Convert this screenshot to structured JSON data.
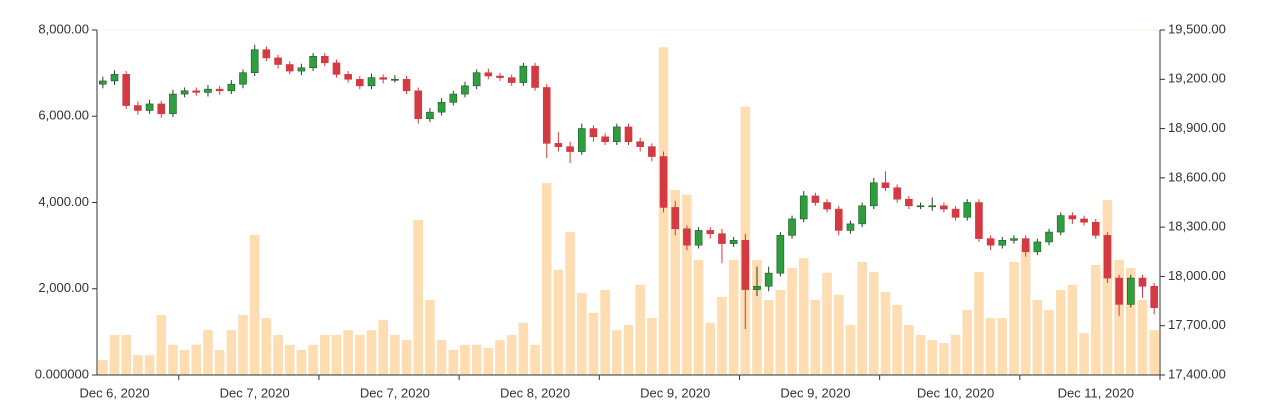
{
  "chart_data": {
    "type": "candlestick",
    "categories": [
      null,
      "Dec 6, 2020",
      null,
      null,
      null,
      null,
      null,
      null,
      null,
      null,
      null,
      null,
      null,
      "Dec 7, 2020",
      null,
      null,
      null,
      null,
      null,
      null,
      null,
      null,
      null,
      null,
      null,
      "Dec 7, 2020",
      null,
      null,
      null,
      null,
      null,
      null,
      null,
      null,
      null,
      null,
      null,
      "Dec 8, 2020",
      null,
      null,
      null,
      null,
      null,
      null,
      null,
      null,
      null,
      null,
      null,
      "Dec 9, 2020",
      null,
      null,
      null,
      null,
      null,
      null,
      null,
      null,
      null,
      null,
      null,
      "Dec 9, 2020",
      null,
      null,
      null,
      null,
      null,
      null,
      null,
      null,
      null,
      null,
      null,
      "Dec 10, 2020",
      null,
      null,
      null,
      null,
      null,
      null,
      null,
      null,
      null,
      null,
      null,
      "Dec 11, 2020",
      null,
      null,
      null,
      null,
      null
    ],
    "open": [
      19170,
      19190,
      19230,
      19040,
      19010,
      19050,
      18990,
      19110,
      19130,
      19120,
      19140,
      19130,
      19170,
      19240,
      19380,
      19330,
      19290,
      19250,
      19270,
      19340,
      19300,
      19230,
      19200,
      19160,
      19210,
      19200,
      19200,
      19130,
      18960,
      19000,
      19060,
      19110,
      19160,
      19240,
      19220,
      19210,
      19180,
      19280,
      19150,
      18810,
      18790,
      18760,
      18900,
      18850,
      18820,
      18910,
      18820,
      18790,
      18730,
      18420,
      18290,
      18190,
      18280,
      18260,
      18200,
      18220,
      17920,
      17940,
      18020,
      18250,
      18350,
      18490,
      18450,
      18410,
      18280,
      18320,
      18430,
      18570,
      18540,
      18470,
      18430,
      18430,
      18430,
      18410,
      18360,
      18450,
      18230,
      18190,
      18220,
      18230,
      18150,
      18210,
      18270,
      18370,
      18350,
      18330,
      18250,
      17990,
      17830,
      17990,
      17940
    ],
    "high": [
      19215,
      19255,
      19250,
      19065,
      19075,
      19070,
      19135,
      19150,
      19150,
      19165,
      19160,
      19195,
      19260,
      19410,
      19400,
      19350,
      19310,
      19295,
      19360,
      19360,
      19320,
      19250,
      19220,
      19235,
      19230,
      19225,
      19220,
      19150,
      19025,
      19085,
      19130,
      19185,
      19260,
      19265,
      19240,
      19230,
      19300,
      19300,
      19170,
      18880,
      18820,
      18930,
      18920,
      18870,
      18930,
      18930,
      18845,
      18810,
      18760,
      18460,
      18310,
      18300,
      18300,
      18290,
      18240,
      18260,
      18060,
      18060,
      18270,
      18370,
      18520,
      18510,
      18470,
      18430,
      18340,
      18450,
      18600,
      18640,
      18560,
      18490,
      18450,
      18480,
      18450,
      18430,
      18470,
      18470,
      18250,
      18240,
      18250,
      18250,
      18230,
      18290,
      18390,
      18390,
      18370,
      18350,
      18270,
      18010,
      18010,
      18010,
      17960
    ],
    "low": [
      19145,
      19165,
      19020,
      18985,
      18990,
      18965,
      18970,
      19090,
      19100,
      19095,
      19105,
      19110,
      19145,
      19220,
      19310,
      19265,
      19230,
      19225,
      19250,
      19280,
      19210,
      19180,
      19140,
      19140,
      19175,
      19180,
      19110,
      18930,
      18940,
      18980,
      19040,
      19090,
      19140,
      19200,
      19190,
      19160,
      19160,
      19130,
      18720,
      18760,
      18690,
      18740,
      18820,
      18800,
      18800,
      18800,
      18760,
      18700,
      18390,
      18250,
      18160,
      18170,
      18230,
      18080,
      18180,
      17680,
      17880,
      17910,
      18000,
      18230,
      18330,
      18430,
      18390,
      18250,
      18260,
      18300,
      18410,
      18520,
      18450,
      18410,
      18410,
      18400,
      18390,
      18340,
      18340,
      18210,
      18160,
      18170,
      18200,
      18120,
      18130,
      18190,
      18250,
      18320,
      18310,
      18230,
      17960,
      17760,
      17810,
      17870,
      17770
    ],
    "close": [
      19190,
      19230,
      19040,
      19010,
      19050,
      18990,
      19110,
      19130,
      19120,
      19140,
      19130,
      19170,
      19240,
      19380,
      19330,
      19290,
      19250,
      19270,
      19340,
      19300,
      19230,
      19200,
      19160,
      19210,
      19200,
      19200,
      19130,
      18960,
      19000,
      19060,
      19110,
      19160,
      19240,
      19220,
      19210,
      19180,
      19280,
      19150,
      18810,
      18790,
      18760,
      18900,
      18850,
      18820,
      18910,
      18820,
      18790,
      18730,
      18420,
      18290,
      18190,
      18280,
      18260,
      18200,
      18220,
      17920,
      17940,
      18020,
      18250,
      18350,
      18490,
      18450,
      18410,
      18280,
      18320,
      18430,
      18570,
      18540,
      18470,
      18430,
      18430,
      18430,
      18410,
      18360,
      18450,
      18230,
      18190,
      18220,
      18230,
      18150,
      18210,
      18270,
      18370,
      18350,
      18330,
      18250,
      17990,
      17830,
      17990,
      17940,
      17810
    ],
    "volume": [
      350,
      930,
      930,
      460,
      460,
      1390,
      700,
      580,
      700,
      1040,
      580,
      1040,
      1390,
      3250,
      1320,
      930,
      700,
      580,
      700,
      930,
      930,
      1040,
      930,
      1040,
      1280,
      930,
      810,
      3600,
      1740,
      810,
      580,
      700,
      700,
      630,
      810,
      930,
      1210,
      700,
      4450,
      2440,
      3320,
      1900,
      1440,
      1970,
      1040,
      1160,
      2090,
      1320,
      7600,
      4290,
      4180,
      2670,
      1210,
      1810,
      2670,
      6220,
      2670,
      1740,
      1970,
      2480,
      2710,
      1740,
      2370,
      1860,
      1160,
      2620,
      2390,
      1930,
      1620,
      1160,
      930,
      810,
      740,
      930,
      1510,
      2390,
      1320,
      1320,
      2620,
      3020,
      1740,
      1510,
      1970,
      2090,
      970,
      2550,
      4060,
      2670,
      2480,
      1740,
      1040
    ],
    "up_color": "#2e9e3e",
    "down_color": "#d43a42",
    "volume_color": "#fdd9a8",
    "ylim": [
      0,
      8000
    ],
    "yticks": [
      {
        "value": 0,
        "label": "0.000000"
      },
      {
        "value": 2000,
        "label": "2,000.00"
      },
      {
        "value": 4000,
        "label": "4,000.00"
      },
      {
        "value": 6000,
        "label": "6,000.00"
      },
      {
        "value": 8000,
        "label": "8,000.00"
      }
    ],
    "y2lim": [
      17400,
      19500
    ],
    "y2ticks": [
      {
        "value": 17400,
        "label": "17,400.00"
      },
      {
        "value": 17700,
        "label": "17,700.00"
      },
      {
        "value": 18000,
        "label": "18,000.00"
      },
      {
        "value": 18300,
        "label": "18,300.00"
      },
      {
        "value": 18600,
        "label": "18,600.00"
      },
      {
        "value": 18900,
        "label": "18,900.00"
      },
      {
        "value": 19200,
        "label": "19,200.00"
      },
      {
        "value": 19500,
        "label": "19,500.00"
      }
    ]
  }
}
